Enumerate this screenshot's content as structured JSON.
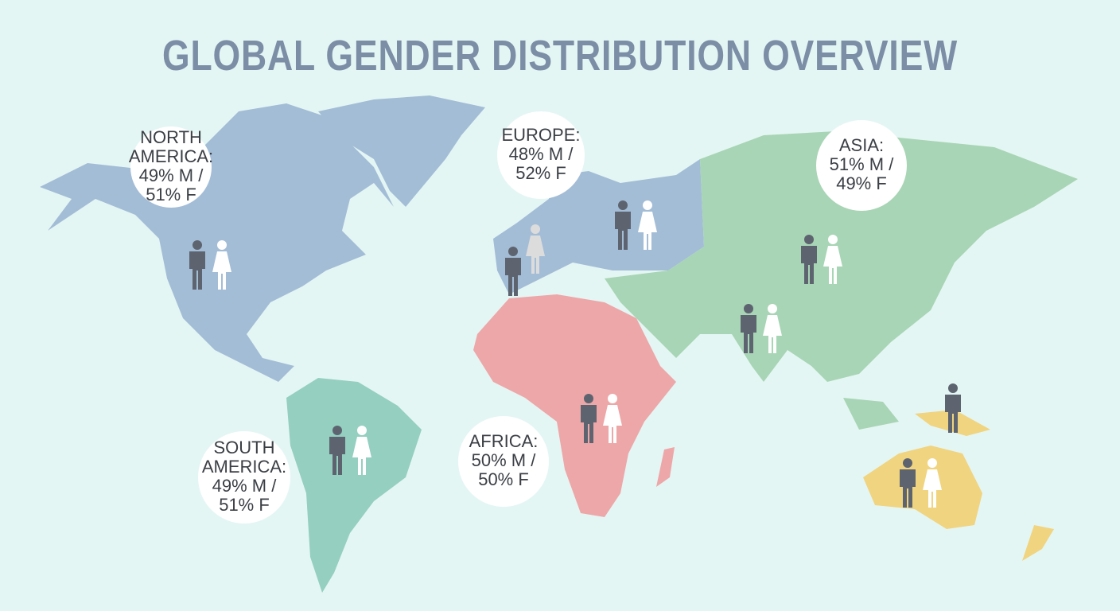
{
  "title": "GLOBAL GENDER DISTRIBUTION OVERVIEW",
  "regions": [
    {
      "lines": [
        "NORTH",
        "AMERICA:",
        "49% M /",
        "51% F"
      ]
    },
    {
      "lines": [
        "EUROPE:",
        "48% M /",
        "52% F"
      ]
    },
    {
      "lines": [
        "ASIA:",
        "51% M /",
        "49% F"
      ]
    },
    {
      "lines": [
        "SOUTH",
        "AMERICA:",
        "49% M /",
        "51% F"
      ]
    },
    {
      "lines": [
        "AFRICA:",
        "50% M /",
        "50% F"
      ]
    }
  ]
}
